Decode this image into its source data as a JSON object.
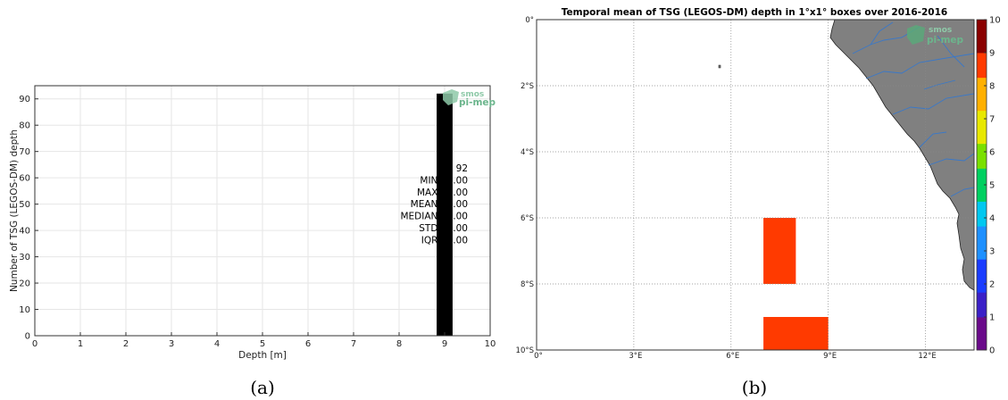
{
  "chart_data": [
    {
      "type": "bar",
      "xlabel": "Depth [m]",
      "ylabel": "Number of TSG (LEGOS-DM) depth",
      "xlim": [
        0,
        10
      ],
      "ylim": [
        0,
        95
      ],
      "xticks": [
        "0",
        "1",
        "2",
        "3",
        "4",
        "5",
        "6",
        "7",
        "8",
        "9",
        "10"
      ],
      "yticks": [
        "0",
        "10",
        "20",
        "30",
        "40",
        "50",
        "60",
        "70",
        "80",
        "90"
      ],
      "grid": true,
      "bars": [
        {
          "x": 9.0,
          "width": 0.35,
          "value": 92
        }
      ],
      "bar_color": "#000000",
      "stats": [
        {
          "label": "# : 92"
        },
        {
          "label": "MIN : 9.00"
        },
        {
          "label": "MAX : 9.00"
        },
        {
          "label": "MEAN : 9.00"
        },
        {
          "label": "MEDIAN : 9.00"
        },
        {
          "label": "STD : 0.00"
        },
        {
          "label": "IQR : 0.00"
        }
      ],
      "logo": {
        "line1": "smos",
        "line2": "pi-mep"
      },
      "caption": "(a)"
    },
    {
      "type": "heatmap",
      "title": "Temporal mean of TSG (LEGOS-DM) depth in 1°x1° boxes over 2016-2016",
      "lon_range": [
        0,
        13.5
      ],
      "lat_range": [
        -10,
        0
      ],
      "xticks": [
        {
          "value": 0,
          "label": "0°"
        },
        {
          "value": 3,
          "label": "3°E"
        },
        {
          "value": 6,
          "label": "6°E"
        },
        {
          "value": 9,
          "label": "9°E"
        },
        {
          "value": 12,
          "label": "12°E"
        }
      ],
      "yticks": [
        {
          "value": 0,
          "label": "0°"
        },
        {
          "value": -2,
          "label": "2°S"
        },
        {
          "value": -4,
          "label": "4°S"
        },
        {
          "value": -6,
          "label": "6°S"
        },
        {
          "value": -8,
          "label": "8°S"
        },
        {
          "value": -10,
          "label": "10°S"
        }
      ],
      "cells": [
        {
          "lon0": 7,
          "lon1": 8,
          "lat0": -8,
          "lat1": -6,
          "value": 9
        },
        {
          "lon0": 7,
          "lon1": 9,
          "lat0": -10,
          "lat1": -9,
          "value": 9
        }
      ],
      "colorbar": {
        "min": 0,
        "max": 10,
        "ticks": [
          "0",
          "1",
          "2",
          "3",
          "4",
          "5",
          "6",
          "7",
          "8",
          "9",
          "10"
        ],
        "colors": [
          "#6a0a8a",
          "#3a1fc7",
          "#1a3cff",
          "#1e90ff",
          "#00c8f0",
          "#00d060",
          "#7ae000",
          "#e8e800",
          "#ffb000",
          "#ff3a00",
          "#8a0000"
        ]
      },
      "land_color": "#808080",
      "logo": {
        "line1": "smos",
        "line2": "pi-mep"
      },
      "caption": "(b)"
    }
  ]
}
